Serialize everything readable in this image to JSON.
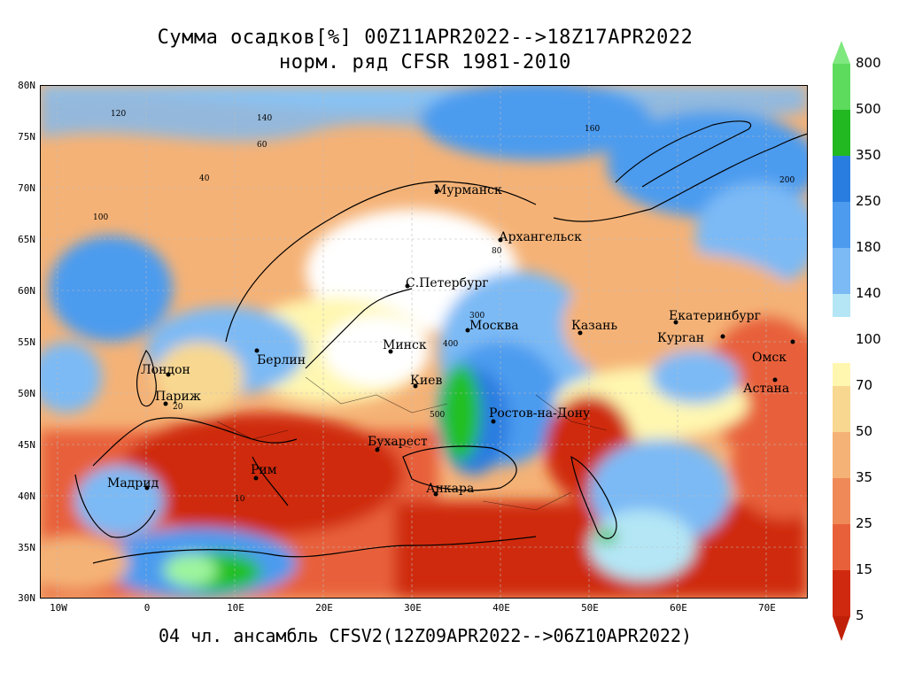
{
  "title_line1": "Сумма осадков[%] 00Z11APR2022-->18Z17APR2022",
  "title_line2": "норм. ряд CFSR 1981-2010",
  "footer": "04 чл. ансамбль CFSV2(12Z09APR2022-->06Z10APR2022)",
  "lat_labels": [
    "80N",
    "75N",
    "70N",
    "65N",
    "60N",
    "55N",
    "50N",
    "45N",
    "40N",
    "35N",
    "30N"
  ],
  "lon_labels": [
    "10W",
    "0",
    "10E",
    "20E",
    "30E",
    "40E",
    "50E",
    "60E",
    "70E"
  ],
  "colorbar": {
    "labels": [
      "800",
      "500",
      "350",
      "250",
      "180",
      "140",
      "100",
      "70",
      "50",
      "35",
      "25",
      "15",
      "5"
    ],
    "colors": [
      "#22c022",
      "#11a511",
      "#2a7de0",
      "#4c9bef",
      "#7cbaf5",
      "#b4e6f5",
      "#fff7b0",
      "#f8d890",
      "#f5b276",
      "#ef8a58",
      "#e8603a",
      "#cf2a10"
    ]
  },
  "cities": {
    "murmansk": "Мурманск",
    "arkhangelsk": "Архангельск",
    "spb": "С.Петербург",
    "moscow": "Москва",
    "kazan": "Казань",
    "ekaterinburg": "Екатеринбург",
    "kurgan": "Курган",
    "omsk": "Омск",
    "astana": "Астана",
    "minsk": "Минск",
    "berlin": "Берлин",
    "london": "Лондон",
    "paris": "Париж",
    "kiev": "Киев",
    "rostov": "Ростов-на-Дону",
    "bucharest": "Бухарест",
    "rome": "Рим",
    "madrid": "Мадрид",
    "ankara": "Анкара"
  },
  "contour_labels": [
    "120",
    "140",
    "160",
    "100",
    "60",
    "40",
    "200",
    "80",
    "300",
    "400",
    "500",
    "20",
    "10"
  ]
}
